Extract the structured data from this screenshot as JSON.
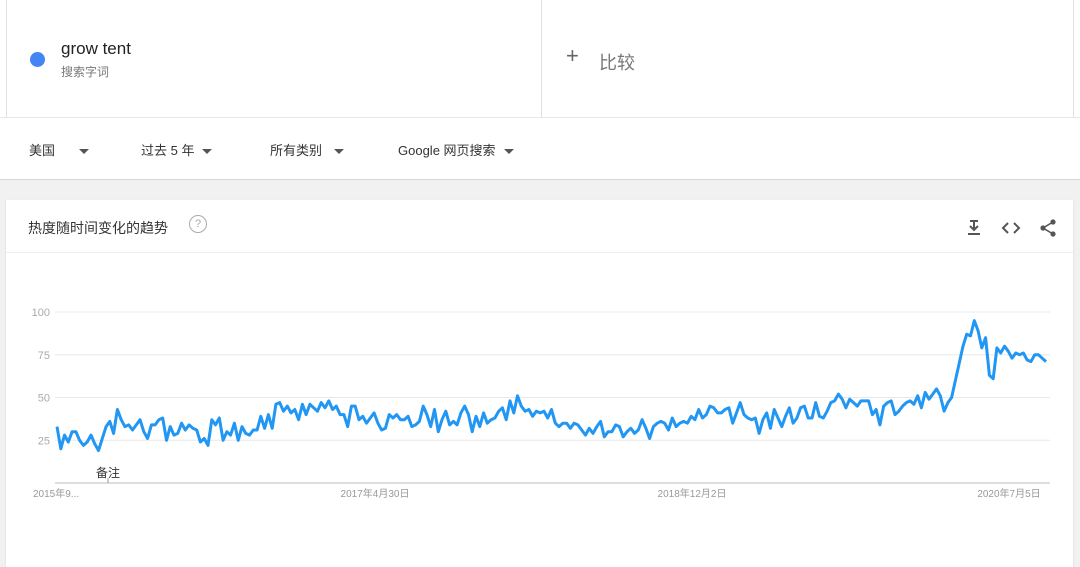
{
  "term": {
    "name": "grow tent",
    "subtitle": "搜索字词",
    "color": "#4285f4"
  },
  "compare": {
    "icon": "plus-icon",
    "label": "比较"
  },
  "filters": [
    {
      "label": "美国"
    },
    {
      "label": "过去 5 年"
    },
    {
      "label": "所有类别"
    },
    {
      "label": "Google 网页搜索"
    }
  ],
  "card": {
    "title": "热度随时间变化的趋势",
    "help_icon": "?",
    "actions": [
      "download-icon",
      "embed-code-icon",
      "share-icon"
    ]
  },
  "chart_data": {
    "type": "line",
    "series_color": "#2196f3",
    "ylim": [
      0,
      100
    ],
    "yticks": [
      25,
      50,
      75,
      100
    ],
    "x_tick_labels": [
      "2015年9...",
      "2017年4月30日",
      "2018年12月2日",
      "2020年7月5日"
    ],
    "annotation": "备注",
    "grid": true,
    "values": [
      33,
      20,
      28,
      24,
      30,
      30,
      25,
      22,
      24,
      28,
      23,
      19,
      26,
      33,
      36,
      29,
      43,
      37,
      33,
      34,
      31,
      34,
      37,
      30,
      26,
      34,
      34,
      37,
      38,
      25,
      33,
      28,
      29,
      35,
      31,
      34,
      32,
      31,
      24,
      26,
      22,
      37,
      34,
      38,
      25,
      30,
      28,
      35,
      25,
      33,
      29,
      28,
      31,
      31,
      39,
      32,
      40,
      32,
      46,
      47,
      42,
      45,
      41,
      43,
      37,
      46,
      40,
      46,
      44,
      42,
      47,
      44,
      48,
      43,
      45,
      40,
      40,
      33,
      45,
      45,
      37,
      39,
      35,
      38,
      41,
      35,
      31,
      32,
      40,
      38,
      40,
      37,
      37,
      39,
      33,
      34,
      36,
      45,
      40,
      33,
      43,
      30,
      37,
      42,
      34,
      36,
      34,
      41,
      45,
      40,
      30,
      39,
      33,
      41,
      35,
      37,
      38,
      42,
      44,
      37,
      48,
      41,
      51,
      45,
      42,
      43,
      39,
      42,
      41,
      42,
      38,
      43,
      35,
      33,
      35,
      35,
      32,
      35,
      34,
      31,
      28,
      32,
      29,
      33,
      36,
      27,
      30,
      30,
      34,
      33,
      27,
      30,
      32,
      29,
      31,
      37,
      32,
      26,
      33,
      35,
      36,
      35,
      31,
      38,
      33,
      35,
      36,
      35,
      39,
      37,
      43,
      38,
      40,
      45,
      44,
      41,
      41,
      43,
      44,
      35,
      41,
      47,
      40,
      38,
      37,
      38,
      29,
      37,
      41,
      32,
      43,
      38,
      33,
      39,
      44,
      35,
      38,
      44,
      45,
      38,
      38,
      47,
      39,
      38,
      42,
      47,
      48,
      52,
      49,
      44,
      49,
      47,
      45,
      48,
      48,
      48,
      40,
      43,
      34,
      45,
      47,
      48,
      40,
      42,
      45,
      47,
      48,
      46,
      51,
      44,
      53,
      49,
      52,
      55,
      51,
      42,
      47,
      50,
      60,
      70,
      80,
      87,
      86,
      95,
      89,
      79,
      85,
      63,
      61,
      79,
      76,
      80,
      77,
      73,
      76,
      75,
      76,
      72,
      71,
      75,
      75,
      73,
      71
    ]
  }
}
